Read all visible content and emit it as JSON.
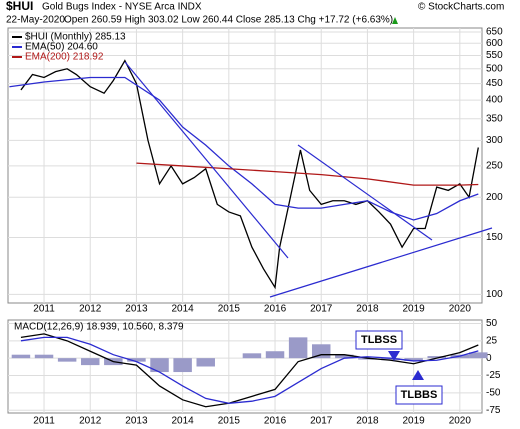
{
  "header": {
    "symbol": "$HUI",
    "name": "Gold Bugs Index - NYSE Arca INDX",
    "credit": "© StockCharts.com",
    "date": "22-May-2020",
    "quote": "Open 260.59 High 303.02 Low 260.44 Close 285.13 Chg +17.72 (+6.63%)"
  },
  "chart_data": [
    {
      "type": "line",
      "log_scale": true,
      "grid": true,
      "legend": "top-left",
      "xlim": [
        2010.22,
        2020.48
      ],
      "xticks": [
        2011,
        2012,
        2013,
        2014,
        2015,
        2016,
        2017,
        2018,
        2019,
        2020
      ],
      "ylim": [
        94,
        669
      ],
      "yticks": [
        100,
        150,
        200,
        250,
        300,
        350,
        400,
        450,
        500,
        550,
        600,
        650
      ],
      "series": [
        {
          "name": "$HUI (Monthly) 285.13",
          "color": "#000000",
          "x": [
            2010.5,
            2010.75,
            2011.0,
            2011.25,
            2011.5,
            2011.7,
            2012.0,
            2012.3,
            2012.5,
            2012.75,
            2013.0,
            2013.25,
            2013.5,
            2013.75,
            2014.0,
            2014.25,
            2014.5,
            2014.75,
            2015.0,
            2015.25,
            2015.5,
            2015.75,
            2016.0,
            2016.1,
            2016.3,
            2016.55,
            2016.75,
            2017.0,
            2017.25,
            2017.5,
            2017.75,
            2018.0,
            2018.25,
            2018.5,
            2018.75,
            2019.0,
            2019.25,
            2019.5,
            2019.75,
            2020.0,
            2020.2,
            2020.4
          ],
          "values": [
            430,
            480,
            470,
            490,
            500,
            480,
            440,
            420,
            460,
            530,
            450,
            300,
            220,
            250,
            220,
            230,
            245,
            190,
            180,
            175,
            140,
            120,
            105,
            140,
            190,
            280,
            210,
            190,
            195,
            195,
            190,
            195,
            180,
            165,
            140,
            160,
            160,
            215,
            210,
            220,
            200,
            285.13
          ]
        },
        {
          "name": "EMA(50) 204.60",
          "color": "#2b2bd0",
          "x": [
            2010.25,
            2011,
            2012,
            2012.75,
            2013.5,
            2014,
            2014.5,
            2015,
            2015.5,
            2016,
            2016.5,
            2017,
            2017.5,
            2018,
            2018.5,
            2019,
            2019.5,
            2020,
            2020.4
          ],
          "values": [
            440,
            455,
            470,
            470,
            400,
            330,
            290,
            250,
            220,
            190,
            185,
            185,
            190,
            195,
            180,
            170,
            178,
            195,
            204.6
          ]
        },
        {
          "name": "EMA(200) 218.92",
          "color": "#b01818",
          "x": [
            2013.0,
            2014,
            2015,
            2016,
            2017,
            2018,
            2019,
            2020,
            2020.4
          ],
          "values": [
            255,
            250,
            245,
            240,
            235,
            228,
            218,
            218,
            218.92
          ]
        }
      ]
    },
    {
      "type": "macd",
      "grid": true,
      "title": "MACD(12,26,9) 18.939, 10.560, 8.379",
      "annotations": [
        "TLBSS",
        "TLBBS"
      ],
      "xlim": [
        2010.22,
        2020.48
      ],
      "xticks": [
        2011,
        2012,
        2013,
        2014,
        2015,
        2016,
        2017,
        2018,
        2019,
        2020
      ],
      "ylim": [
        -79,
        55
      ],
      "yticks": [
        50,
        25,
        0,
        -25,
        -50,
        -75
      ],
      "x": [
        2010.5,
        2011.0,
        2011.5,
        2012.0,
        2012.5,
        2013.0,
        2013.5,
        2014.0,
        2014.5,
        2015.0,
        2015.5,
        2016.0,
        2016.5,
        2017.0,
        2017.5,
        2018.0,
        2018.5,
        2019.0,
        2019.5,
        2020.0,
        2020.4
      ],
      "series": [
        {
          "name": "MACD",
          "color": "#000000",
          "values": [
            30,
            35,
            25,
            10,
            -5,
            -10,
            -40,
            -60,
            -70,
            -65,
            -55,
            -45,
            -5,
            5,
            5,
            0,
            -3,
            -8,
            0,
            8,
            18.939
          ]
        },
        {
          "name": "Signal",
          "color": "#2b2bd0",
          "values": [
            25,
            30,
            30,
            20,
            5,
            -5,
            -20,
            -40,
            -58,
            -65,
            -62,
            -55,
            -35,
            -15,
            0,
            2,
            0,
            -4,
            -3,
            3,
            10.56
          ]
        },
        {
          "name": "Histogram",
          "color": "#9a9ac8",
          "values": [
            5,
            5,
            -5,
            -10,
            -10,
            -5,
            -20,
            -20,
            -12,
            0,
            7,
            10,
            30,
            20,
            5,
            -2,
            -3,
            -4,
            3,
            5,
            8.379
          ]
        }
      ]
    }
  ]
}
